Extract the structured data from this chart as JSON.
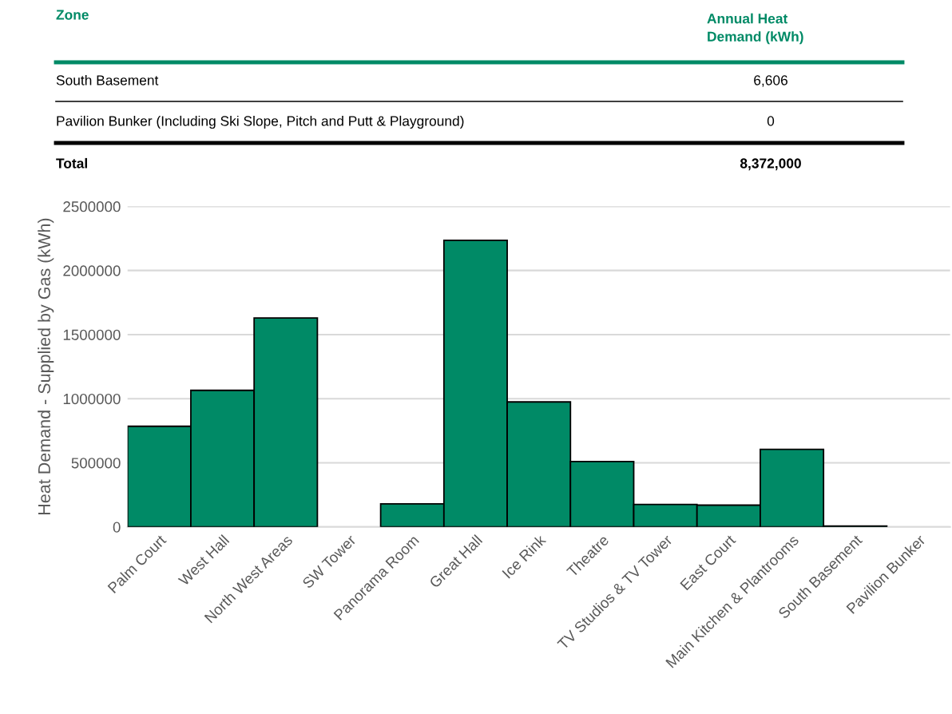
{
  "chart_data": {
    "type": "bar",
    "ylabel": "Heat Demand - Supplied by Gas (kWh)",
    "categories": [
      "Palm Court",
      "West Hall",
      "North West Areas",
      "SW Tower",
      "Panorama Room",
      "Great Hall",
      "Ice Rink",
      "Theatre",
      "TV Studios & TV Tower",
      "East Court",
      "Main Kitchen & Plantrooms",
      "South Basement",
      "Pavilion Bunker"
    ],
    "values": [
      785000,
      1065000,
      1630000,
      0,
      180000,
      2235000,
      975000,
      510000,
      175000,
      170000,
      605000,
      6606,
      0
    ],
    "color": "#008a66",
    "ylim": [
      0,
      2500000
    ],
    "yticks": [
      0,
      500000,
      1000000,
      1500000,
      2000000,
      2500000
    ],
    "grid": "y",
    "annotations": [
      "Zone",
      "Annual Heat\nDemand (kWh)",
      "South Basement",
      "6,606",
      "Pavilion Bunker (Including Ski Slope, Pitch and Putt & Playground)",
      "0",
      "Total",
      "8,372,000"
    ]
  }
}
